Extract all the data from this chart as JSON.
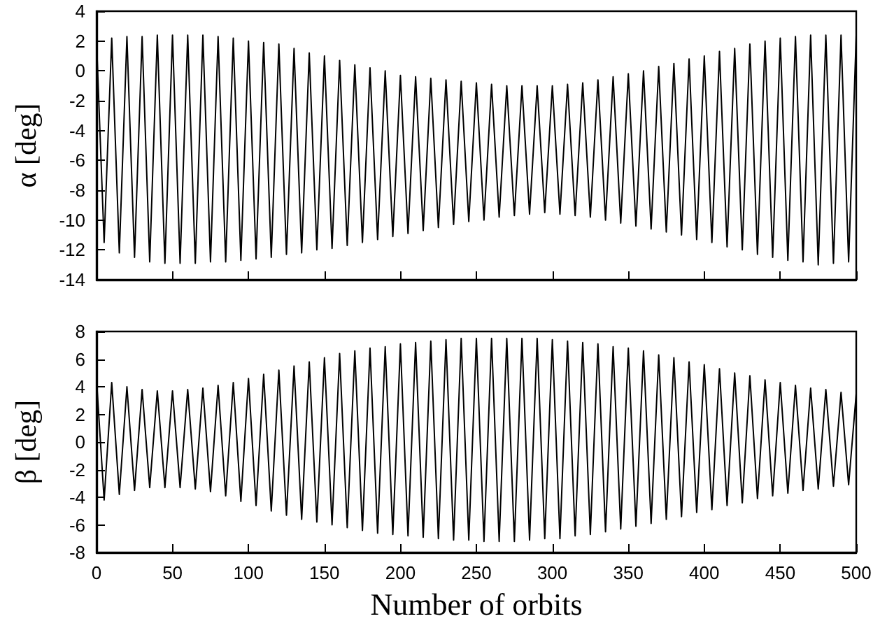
{
  "chart_data": [
    {
      "type": "line",
      "ylabel": "α [deg]",
      "tick_labels": "y",
      "grid": false,
      "marker": "none",
      "line_style": "solid",
      "xlim": [
        0,
        500
      ],
      "xticks": [
        0,
        50,
        100,
        150,
        200,
        250,
        300,
        350,
        400,
        450,
        500
      ],
      "ylim": [
        -14,
        4
      ],
      "yticks": [
        -14,
        -12,
        -10,
        -8,
        -6,
        -4,
        -2,
        0,
        2,
        4
      ],
      "x": [
        0,
        5,
        10,
        15,
        20,
        25,
        30,
        35,
        40,
        45,
        50,
        55,
        60,
        65,
        70,
        75,
        80,
        85,
        90,
        95,
        100,
        105,
        110,
        115,
        120,
        125,
        130,
        135,
        140,
        145,
        150,
        155,
        160,
        165,
        170,
        175,
        180,
        185,
        190,
        195,
        200,
        205,
        210,
        215,
        220,
        225,
        230,
        235,
        240,
        245,
        250,
        255,
        260,
        265,
        270,
        275,
        280,
        285,
        290,
        295,
        300,
        305,
        310,
        315,
        320,
        325,
        330,
        335,
        340,
        345,
        350,
        355,
        360,
        365,
        370,
        375,
        380,
        385,
        390,
        395,
        400,
        405,
        410,
        415,
        420,
        425,
        430,
        435,
        440,
        445,
        450,
        455,
        460,
        465,
        470,
        475,
        480,
        485,
        490,
        495,
        500
      ],
      "series": [
        {
          "color": "#000000",
          "values": [
            2.0,
            -11.5,
            2.2,
            -12.2,
            2.3,
            -12.5,
            2.3,
            -12.8,
            2.4,
            -12.9,
            2.4,
            -12.9,
            2.4,
            -12.9,
            2.4,
            -12.8,
            2.3,
            -12.8,
            2.2,
            -12.7,
            2.0,
            -12.6,
            1.9,
            -12.5,
            1.8,
            -12.3,
            1.5,
            -12.2,
            1.2,
            -12.0,
            1.0,
            -11.9,
            0.7,
            -11.7,
            0.4,
            -11.5,
            0.2,
            -11.3,
            0.0,
            -11.1,
            -0.3,
            -10.9,
            -0.4,
            -10.7,
            -0.5,
            -10.5,
            -0.6,
            -10.3,
            -0.7,
            -10.1,
            -0.8,
            -10.0,
            -0.9,
            -9.8,
            -1.0,
            -9.7,
            -1.0,
            -9.6,
            -1.0,
            -9.5,
            -1.0,
            -9.6,
            -0.9,
            -9.7,
            -0.8,
            -9.8,
            -0.6,
            -10.0,
            -0.4,
            -10.2,
            -0.2,
            -10.4,
            0.0,
            -10.6,
            0.3,
            -10.8,
            0.5,
            -11.0,
            0.8,
            -11.3,
            1.0,
            -11.5,
            1.3,
            -11.8,
            1.5,
            -12.0,
            1.8,
            -12.3,
            2.0,
            -12.5,
            2.2,
            -12.7,
            2.3,
            -12.8,
            2.4,
            -13.0,
            2.4,
            -12.9,
            2.4,
            -12.8,
            2.4
          ]
        }
      ]
    },
    {
      "type": "line",
      "ylabel": "β [deg]",
      "xlabel": "Number of orbits",
      "grid": false,
      "marker": "none",
      "line_style": "solid",
      "xlim": [
        0,
        500
      ],
      "xticks": [
        0,
        50,
        100,
        150,
        200,
        250,
        300,
        350,
        400,
        450,
        500
      ],
      "ylim": [
        -8,
        8
      ],
      "yticks": [
        -8,
        -6,
        -4,
        -2,
        0,
        2,
        4,
        6,
        8
      ],
      "x": [
        0,
        5,
        10,
        15,
        20,
        25,
        30,
        35,
        40,
        45,
        50,
        55,
        60,
        65,
        70,
        75,
        80,
        85,
        90,
        95,
        100,
        105,
        110,
        115,
        120,
        125,
        130,
        135,
        140,
        145,
        150,
        155,
        160,
        165,
        170,
        175,
        180,
        185,
        190,
        195,
        200,
        205,
        210,
        215,
        220,
        225,
        230,
        235,
        240,
        245,
        250,
        255,
        260,
        265,
        270,
        275,
        280,
        285,
        290,
        295,
        300,
        305,
        310,
        315,
        320,
        325,
        330,
        335,
        340,
        345,
        350,
        355,
        360,
        365,
        370,
        375,
        380,
        385,
        390,
        395,
        400,
        405,
        410,
        415,
        420,
        425,
        430,
        435,
        440,
        445,
        450,
        455,
        460,
        465,
        470,
        475,
        480,
        485,
        490,
        495,
        500
      ],
      "series": [
        {
          "color": "#000000",
          "values": [
            4.5,
            -4.2,
            4.3,
            -3.8,
            4.0,
            -3.5,
            3.8,
            -3.3,
            3.7,
            -3.3,
            3.7,
            -3.3,
            3.8,
            -3.4,
            3.9,
            -3.6,
            4.1,
            -3.9,
            4.3,
            -4.3,
            4.6,
            -4.6,
            4.9,
            -5.0,
            5.2,
            -5.3,
            5.5,
            -5.6,
            5.8,
            -5.8,
            6.1,
            -6.0,
            6.4,
            -6.2,
            6.6,
            -6.4,
            6.8,
            -6.6,
            6.9,
            -6.7,
            7.1,
            -6.8,
            7.2,
            -6.9,
            7.3,
            -7.0,
            7.4,
            -7.1,
            7.5,
            -7.1,
            7.5,
            -7.2,
            7.5,
            -7.2,
            7.5,
            -7.2,
            7.5,
            -7.1,
            7.5,
            -7.0,
            7.4,
            -7.0,
            7.3,
            -6.8,
            7.2,
            -6.7,
            7.1,
            -6.5,
            6.9,
            -6.3,
            6.8,
            -6.1,
            6.6,
            -5.9,
            6.3,
            -5.6,
            6.1,
            -5.4,
            5.8,
            -5.1,
            5.6,
            -4.9,
            5.3,
            -4.6,
            5.0,
            -4.4,
            4.8,
            -4.1,
            4.5,
            -3.9,
            4.3,
            -3.7,
            4.1,
            -3.5,
            3.9,
            -3.4,
            3.8,
            -3.2,
            3.6,
            -3.1,
            3.5
          ]
        }
      ]
    }
  ]
}
